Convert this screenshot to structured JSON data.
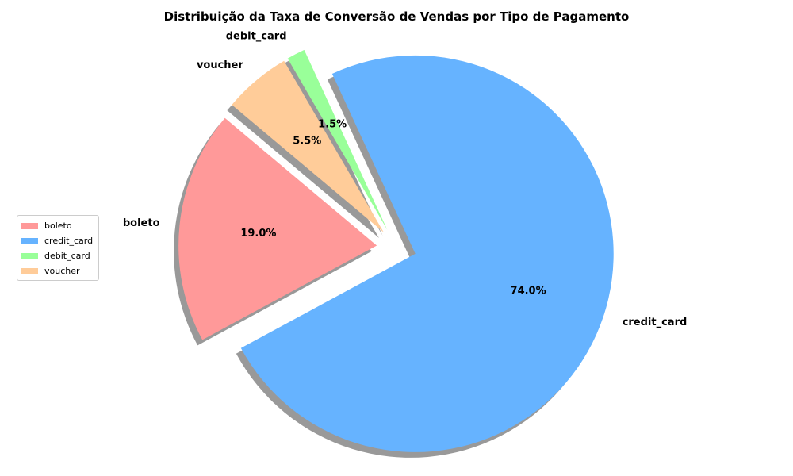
{
  "chart_data": {
    "type": "pie",
    "title": "Distribuição da Taxa de Conversão de Vendas por Tipo de Pagamento",
    "start_angle_deg": 140,
    "direction": "counterclockwise",
    "shadow": true,
    "legend_placement": "center-left",
    "slices": [
      {
        "label": "boleto",
        "value": 19.0,
        "pct_label": "19.0%",
        "color": "#ff9999",
        "exploded": true
      },
      {
        "label": "credit_card",
        "value": 74.0,
        "pct_label": "74.0%",
        "color": "#66b3ff",
        "exploded": true
      },
      {
        "label": "debit_card",
        "value": 1.5,
        "pct_label": "1.5%",
        "color": "#99ff99",
        "exploded": true
      },
      {
        "label": "voucher",
        "value": 5.5,
        "pct_label": "5.5%",
        "color": "#ffcc99",
        "exploded": true
      }
    ]
  }
}
